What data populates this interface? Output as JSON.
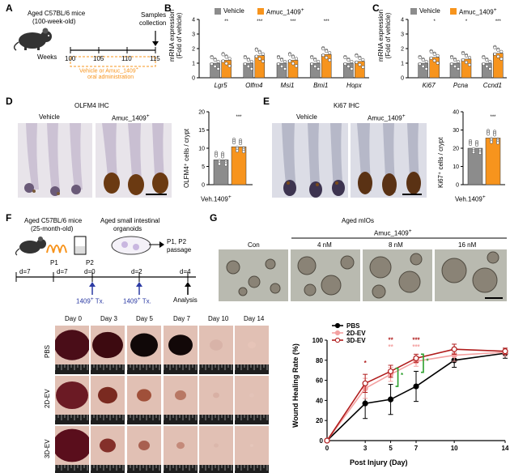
{
  "panel_labels": {
    "a": "A",
    "b": "B",
    "c": "C",
    "d": "D",
    "e": "E",
    "f": "F",
    "g": "G"
  },
  "panel_a": {
    "title_line1": "Aged C57BL/6 mice",
    "title_line2": "(100-week-old)",
    "weeks_label": "Weeks",
    "week_ticks": [
      "100",
      "105",
      "110",
      "115"
    ],
    "samples_line1": "Samples",
    "samples_line2": "collection",
    "treatment_line1": "Vehicle or Amuc_1409",
    "treatment_sup": "+",
    "treatment_line2": "oral administration"
  },
  "legend": {
    "vehicle": "Vehicle",
    "amuc": "Amuc_1409",
    "amuc_sup": "+"
  },
  "panel_b": {
    "ylabel_line1": "mRNA expression",
    "ylabel_line2": "(Fold of vehicle)",
    "yticks": [
      "0",
      "1",
      "2",
      "3",
      "4"
    ],
    "genes": [
      "Lgr5",
      "Olfm4",
      "Msi1",
      "Bmi1",
      "Hopx"
    ],
    "sig": [
      "**",
      "***",
      "***",
      "***",
      ""
    ]
  },
  "panel_c": {
    "ylabel_line1": "mRNA expression",
    "ylabel_line2": "(Fold of vehicle)",
    "yticks": [
      "0",
      "1",
      "2",
      "3",
      "4"
    ],
    "genes": [
      "Ki67",
      "Pcna",
      "Ccnd1"
    ],
    "sig": [
      "*",
      "*",
      "***"
    ]
  },
  "panel_d": {
    "title": "OLFM4 IHC",
    "left_label": "Vehicle",
    "right_label": "Amuc_1409",
    "right_sup": "+",
    "ylabel": "OLFM4⁺ cells / crypt",
    "yticks": [
      "0",
      "5",
      "10",
      "15",
      "20"
    ],
    "xlabel": "Veh.1409",
    "xsup": "+",
    "sig": "***"
  },
  "panel_e": {
    "title": "Ki67 IHC",
    "left_label": "Vehicle",
    "right_label": "Amuc_1409",
    "right_sup": "+",
    "ylabel": "Ki67⁺ cells / crypt",
    "yticks": [
      "0",
      "10",
      "20",
      "30",
      "40"
    ],
    "xlabel": "Veh.1409",
    "xsup": "+",
    "sig": "***"
  },
  "panel_f": {
    "title_line1": "Aged C57BL/6 mice",
    "title_line2": "(25-month-old)",
    "organoid_line1": "Aged small intestinal",
    "organoid_line2": "organoids",
    "passage_line1": "P1, P2",
    "passage_line2": "passage",
    "p1": "P1",
    "p2": "P2",
    "d7a": "d=7",
    "d7b": "d=7",
    "d0": "d=0",
    "d2": "d=2",
    "d4": "d=4",
    "tx1": "1409",
    "tx2": "1409",
    "tx_suffix": " Tx.",
    "tx_sup": "+",
    "analysis": "Analysis"
  },
  "panel_g": {
    "title": "Aged mIOs",
    "group": "Amuc_1409",
    "group_sup": "+",
    "conditions": [
      "Con",
      "4 nM",
      "8 nM",
      "16 nM"
    ]
  },
  "wound": {
    "days": [
      "Day 0",
      "Day 3",
      "Day 5",
      "Day 7",
      "Day 10",
      "Day 14"
    ],
    "rows": [
      "PBS",
      "2D-EV",
      "3D-EV"
    ]
  },
  "colors": {
    "vehicle": "#8c8c8c",
    "amuc": "#f7941d",
    "pbs": "#000000",
    "ev2d": "#f4a1a1",
    "ev3d": "#b01c1c",
    "sig_green": "#2ca02c"
  },
  "chart_data": {
    "type": "line",
    "ylabel": "Wound Healing Rate (%)",
    "xlabel": "Post Injury (Day)",
    "x": [
      0,
      3,
      5,
      7,
      10,
      14
    ],
    "ylim": [
      0,
      100
    ],
    "yticks": [
      0,
      20,
      40,
      60,
      80,
      100
    ],
    "legend_position": "top-left",
    "series": [
      {
        "name": "PBS",
        "values": [
          0,
          37,
          41,
          54,
          80,
          87
        ],
        "err": [
          0,
          15,
          15,
          15,
          7,
          5
        ]
      },
      {
        "name": "2D-EV",
        "values": [
          0,
          52,
          66,
          79,
          85,
          88
        ],
        "err": [
          0,
          10,
          7,
          5,
          6,
          4
        ]
      },
      {
        "name": "3D-EV",
        "values": [
          0,
          57,
          69,
          82,
          91,
          89
        ],
        "err": [
          0,
          9,
          6,
          4,
          5,
          3
        ]
      }
    ],
    "annotations": {
      "red": [
        {
          "x": 3,
          "text": "*"
        },
        {
          "x": 5,
          "text": "**"
        },
        {
          "x": 7,
          "text": "***"
        }
      ],
      "pink": [
        {
          "x": 5,
          "text": "**"
        },
        {
          "x": 7,
          "text": "***"
        }
      ],
      "green": [
        {
          "x": 5,
          "text": "*"
        },
        {
          "x": 7,
          "text": "*"
        }
      ]
    }
  }
}
